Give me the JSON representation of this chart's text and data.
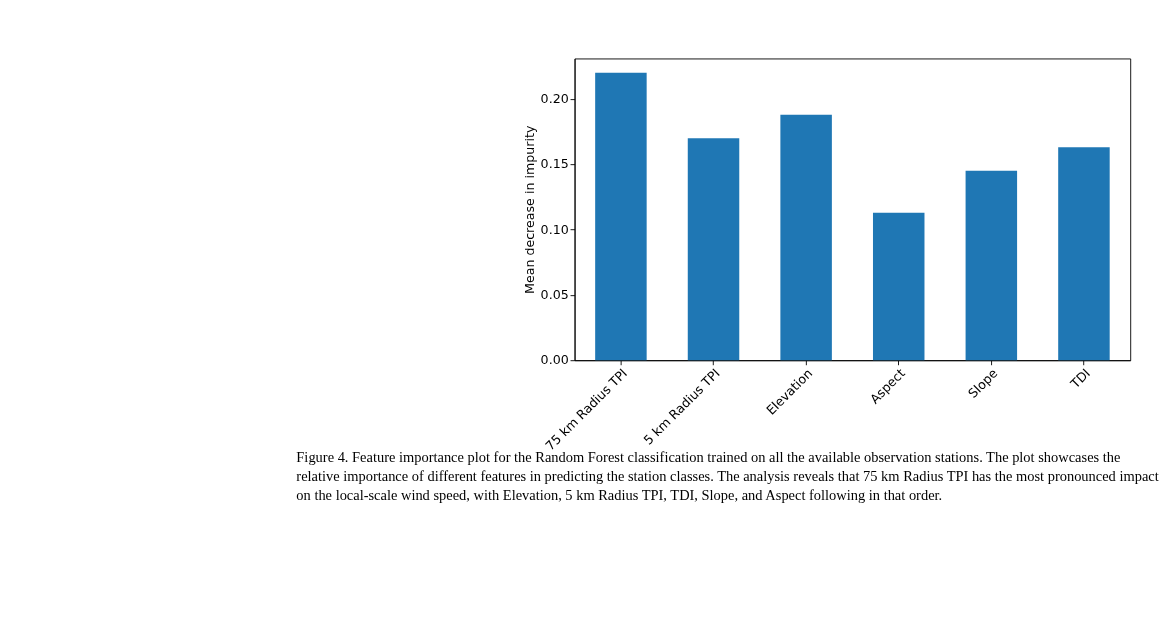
{
  "chart_data": {
    "type": "bar",
    "ylabel": "Mean decrease in impurity",
    "categories": [
      "75 km Radius TPI",
      "5 km Radius TPI",
      "Elevation",
      "Aspect",
      "Slope",
      "TDI"
    ],
    "series": [
      {
        "color": "#1f77b4",
        "values": [
          0.22,
          0.17,
          0.188,
          0.113,
          0.145,
          0.163
        ]
      }
    ],
    "ylim": [
      0,
      0.231
    ],
    "yticks": [
      {
        "value": 0,
        "label": "0.00"
      },
      {
        "value": 0.05,
        "label": "0.05"
      },
      {
        "value": 0.1,
        "label": "0.10"
      },
      {
        "value": 0.15,
        "label": "0.15"
      },
      {
        "value": 0.2,
        "label": "0.20"
      }
    ],
    "grid": false,
    "annotations": [
      "Figure 4. Feature importance plot for the Random Forest classification trained on all the available observation stations. The plot showcases the relative importance of different features in predicting the station classes. The analysis reveals that 75 km Radius TPI has the most pronounced impact on the local-scale wind speed, with Elevation, 5 km Radius TPI, TDI, Slope, and Aspect following in that order."
    ]
  }
}
